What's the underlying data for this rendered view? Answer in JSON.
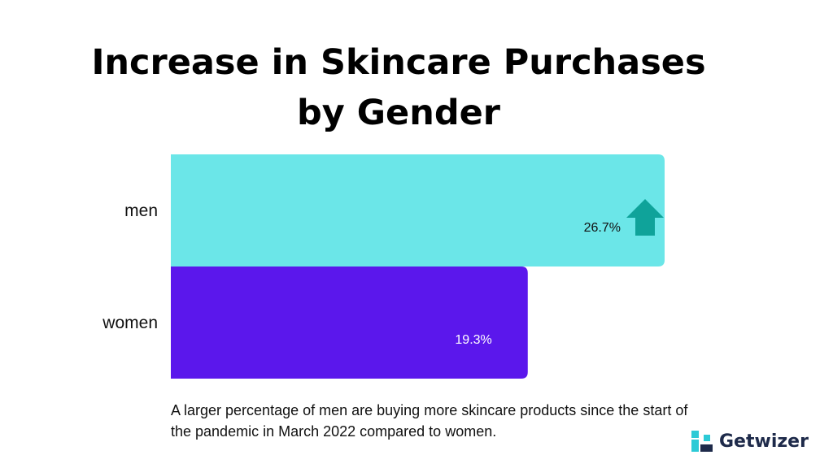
{
  "chart_data": {
    "type": "bar",
    "orientation": "horizontal",
    "title": "Increase in Skincare Purchases by Gender",
    "title_lines": [
      "Increase in Skincare Purchases",
      "by Gender"
    ],
    "categories": [
      "men",
      "women"
    ],
    "values": [
      26.7,
      19.3
    ],
    "value_labels": [
      "26.7%",
      "19.3%"
    ],
    "colors": [
      "#6be6e8",
      "#5b17ec"
    ],
    "label_colors": [
      "#111111",
      "#ffffff"
    ],
    "xlim": [
      0,
      26.7
    ],
    "grid": false,
    "legend": "none",
    "annotations": [
      {
        "category": "men",
        "type": "up-arrow-icon",
        "color": "#0fa39a"
      }
    ]
  },
  "caption": "A larger percentage of men are buying more skincare products since the start of the pandemic in March 2022 compared to women.",
  "brand": {
    "name": "Getwizer",
    "logo_icon": "getwizer-logo-icon",
    "colors": [
      "#2ccad6",
      "#1e2a4a"
    ]
  }
}
